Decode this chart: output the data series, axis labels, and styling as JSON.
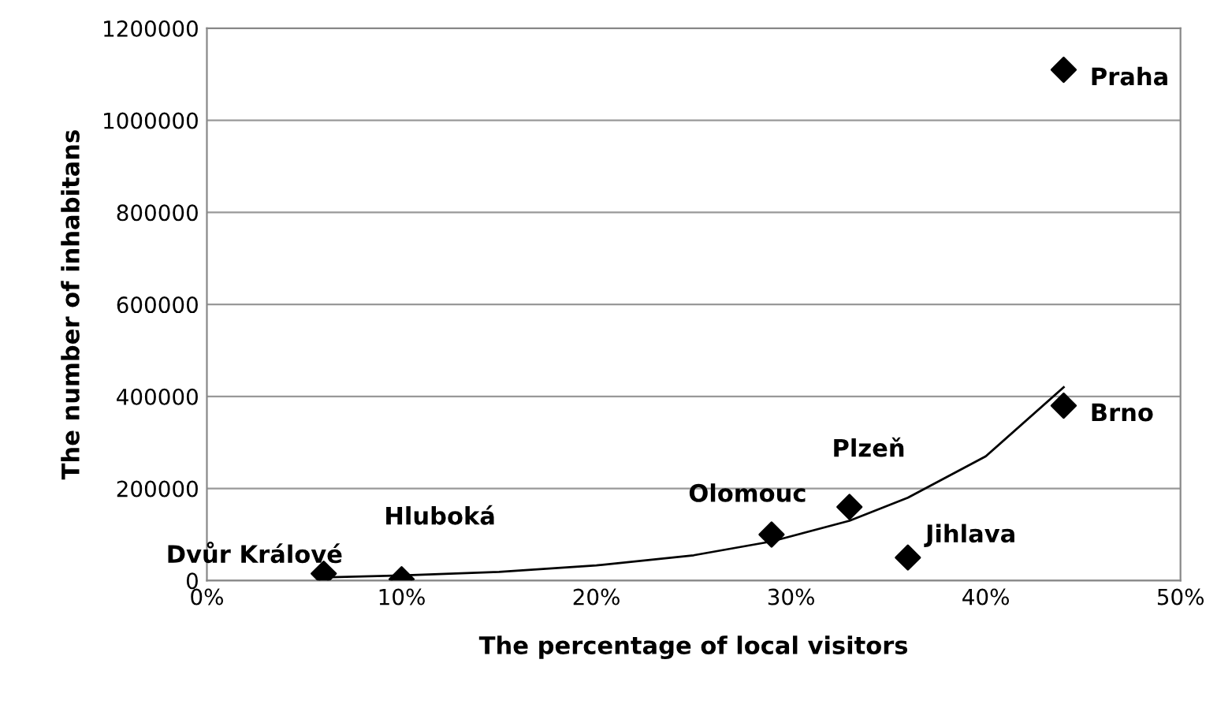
{
  "chart_data": {
    "type": "scatter",
    "xlabel": "The percentage of local visitors",
    "ylabel": "The number of inhabitans",
    "xlim": [
      0,
      50
    ],
    "ylim": [
      0,
      1200000
    ],
    "xticks": [
      {
        "value": 0,
        "label": "0%"
      },
      {
        "value": 10,
        "label": "10%"
      },
      {
        "value": 20,
        "label": "20%"
      },
      {
        "value": 30,
        "label": "30%"
      },
      {
        "value": 40,
        "label": "40%"
      },
      {
        "value": 50,
        "label": "50%"
      }
    ],
    "yticks": [
      0,
      200000,
      400000,
      600000,
      800000,
      1000000,
      1200000
    ],
    "grid": "y",
    "legend": false,
    "series": [
      {
        "marker": "diamond",
        "color": "#000000",
        "x": [
          6,
          10,
          29,
          33,
          36,
          44,
          44
        ],
        "values": [
          15000,
          3000,
          100000,
          160000,
          50000,
          380000,
          1110000
        ]
      },
      {
        "type": "line",
        "color": "#000000",
        "x": [
          6,
          10,
          15,
          20,
          25,
          29,
          33,
          36,
          40,
          44
        ],
        "values": [
          7000,
          11000,
          19000,
          33000,
          55000,
          85000,
          130000,
          180000,
          270000,
          420000
        ]
      }
    ],
    "annotations": [
      {
        "text": "Dvůr Králové",
        "x": 6,
        "y": 15000
      },
      {
        "text": "Hluboká",
        "x": 10,
        "y": 3000
      },
      {
        "text": "Olomouc",
        "x": 29,
        "y": 100000
      },
      {
        "text": "Plzeň",
        "x": 33,
        "y": 160000
      },
      {
        "text": "Jihlava",
        "x": 36,
        "y": 50000
      },
      {
        "text": "Brno",
        "x": 44,
        "y": 380000
      },
      {
        "text": "Praha",
        "x": 44,
        "y": 1110000
      }
    ]
  }
}
